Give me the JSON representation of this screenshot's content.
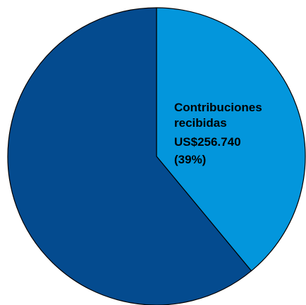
{
  "chart_data": {
    "type": "pie",
    "title": "",
    "start_angle_deg": 0,
    "direction": "clockwise",
    "slices": [
      {
        "percent": 39,
        "color": "#0396dc",
        "label_lines": [
          "Contribuciones",
          "recibidas",
          "US$256.740",
          "(39%)"
        ]
      },
      {
        "percent": 61,
        "color": "#044b8f",
        "label_lines": []
      }
    ]
  }
}
